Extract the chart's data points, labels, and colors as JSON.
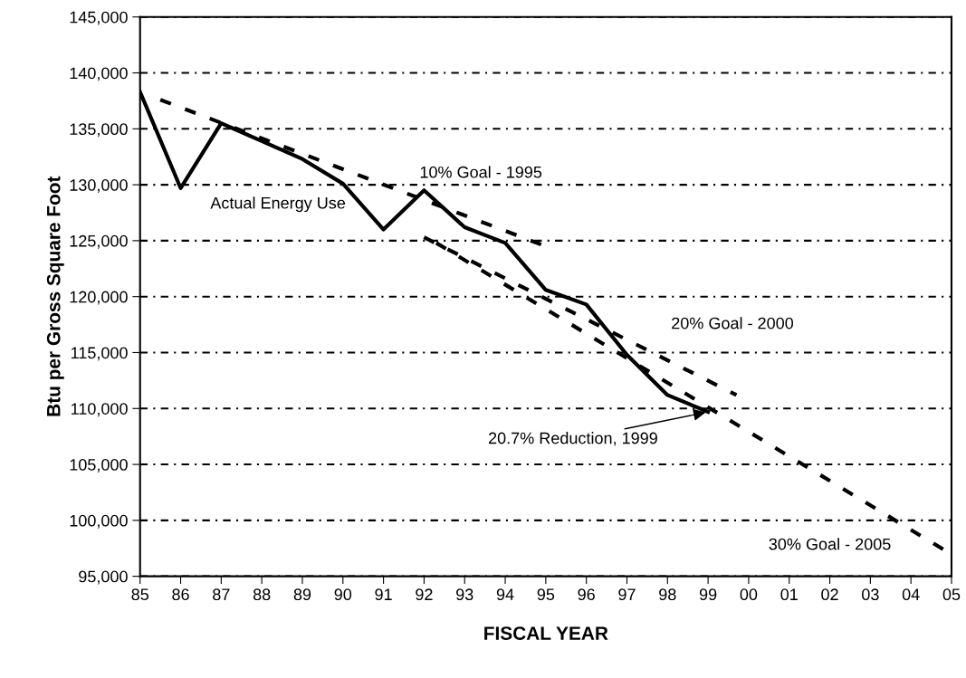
{
  "chart_data": {
    "type": "line",
    "xlabel": "FISCAL YEAR",
    "ylabel": "Btu per Gross Square Foot",
    "xlim": [
      1985,
      2005
    ],
    "xticks": [
      {
        "value": 1985,
        "label": "85"
      },
      {
        "value": 1986,
        "label": "86"
      },
      {
        "value": 1987,
        "label": "87"
      },
      {
        "value": 1988,
        "label": "88"
      },
      {
        "value": 1989,
        "label": "89"
      },
      {
        "value": 1990,
        "label": "90"
      },
      {
        "value": 1991,
        "label": "91"
      },
      {
        "value": 1992,
        "label": "92"
      },
      {
        "value": 1993,
        "label": "93"
      },
      {
        "value": 1994,
        "label": "94"
      },
      {
        "value": 1995,
        "label": "95"
      },
      {
        "value": 1996,
        "label": "96"
      },
      {
        "value": 1997,
        "label": "97"
      },
      {
        "value": 1998,
        "label": "98"
      },
      {
        "value": 1999,
        "label": "99"
      },
      {
        "value": 2000,
        "label": "00"
      },
      {
        "value": 2001,
        "label": "01"
      },
      {
        "value": 2002,
        "label": "02"
      },
      {
        "value": 2003,
        "label": "03"
      },
      {
        "value": 2004,
        "label": "04"
      },
      {
        "value": 2005,
        "label": "05"
      }
    ],
    "ylim": [
      95000,
      145000
    ],
    "yticks": [
      {
        "value": 95000,
        "label": "95,000"
      },
      {
        "value": 100000,
        "label": "100,000"
      },
      {
        "value": 105000,
        "label": "105,000"
      },
      {
        "value": 110000,
        "label": "110,000"
      },
      {
        "value": 115000,
        "label": "115,000"
      },
      {
        "value": 120000,
        "label": "120,000"
      },
      {
        "value": 125000,
        "label": "125,000"
      },
      {
        "value": 130000,
        "label": "130,000"
      },
      {
        "value": 135000,
        "label": "135,000"
      },
      {
        "value": 140000,
        "label": "140,000"
      },
      {
        "value": 145000,
        "label": "145,000"
      }
    ],
    "grid": "y",
    "legend": false,
    "marker": "none",
    "series": [
      {
        "color": "#000000",
        "line_style": "solid",
        "x": [
          1985,
          1986,
          1987,
          1988,
          1989,
          1990,
          1991,
          1992,
          1993,
          1994,
          1995,
          1996,
          1997,
          1998,
          1999
        ],
        "values": [
          138300,
          129700,
          135500,
          133900,
          132300,
          130100,
          126000,
          129500,
          126200,
          124800,
          120600,
          119300,
          114800,
          111200,
          109700
        ]
      },
      {
        "color": "#000000",
        "line_style": "dashed",
        "x": [
          1985.5,
          1995
        ],
        "values": [
          137600,
          124500
        ]
      },
      {
        "color": "#000000",
        "line_style": "dashed",
        "x": [
          1992,
          1999.7
        ],
        "values": [
          125300,
          111200
        ]
      },
      {
        "color": "#000000",
        "line_style": "dashed",
        "x": [
          1992.3,
          2004.8
        ],
        "values": [
          124800,
          97400
        ]
      }
    ],
    "annotations": [
      "10% Goal - 1995",
      "Actual Energy Use",
      "20% Goal - 2000",
      {
        "text": "20.7% Reduction, 1999",
        "x": 1999,
        "y": 109700
      },
      "30% Goal - 2005"
    ]
  }
}
